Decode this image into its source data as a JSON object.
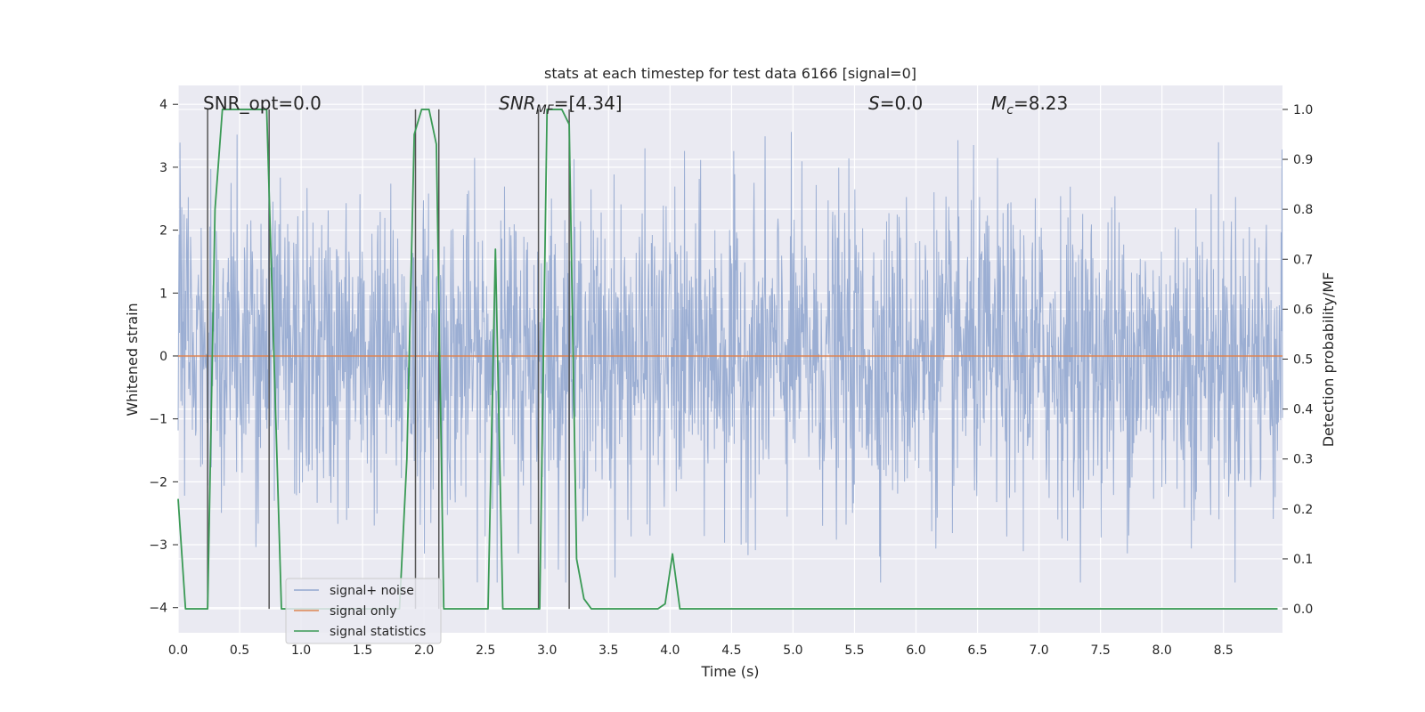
{
  "chart_data": {
    "type": "line",
    "title": "stats at each timestep for test data 6166 [signal=0]",
    "xlabel": "Time (s)",
    "ylabel": "Whitened strain",
    "ylabel_right": "Detection probability/MF",
    "xlim": [
      0,
      8.98
    ],
    "ylim": [
      -4.4,
      4.3
    ],
    "ylim_right": [
      -0.048,
      1.048
    ],
    "grid": true,
    "x_ticks": [
      "0.0",
      "0.5",
      "1.0",
      "1.5",
      "2.0",
      "2.5",
      "3.0",
      "3.5",
      "4.0",
      "4.5",
      "5.0",
      "5.5",
      "6.0",
      "6.5",
      "7.0",
      "7.5",
      "8.0",
      "8.5"
    ],
    "y_ticks": [
      "4",
      "3",
      "2",
      "1",
      "0",
      "−1",
      "−2",
      "−3",
      "−4"
    ],
    "y_ticks_right": [
      "1.0",
      "0.9",
      "0.8",
      "0.7",
      "0.6",
      "0.5",
      "0.4",
      "0.3",
      "0.2",
      "0.1",
      "0.0"
    ],
    "annotations": {
      "snr_opt": "SNR_opt=0.0",
      "snr_mf_sym": "SNR",
      "snr_mf_sub": "MF",
      "snr_mf_val": "=[4.34]",
      "s_sym": "S",
      "s_val": "=0.0",
      "mc_sym": "M",
      "mc_sub": "c",
      "mc_val": "=8.23"
    },
    "legend": {
      "position": "lower left",
      "entries": [
        "signal+ noise",
        "signal only",
        "signal statistics"
      ]
    },
    "colors": {
      "noise": "#92a7cf",
      "signal": "#dd8452",
      "stats": "#3a9a55",
      "vline": "#555555",
      "plot_bg": "#eaeaf2",
      "grid": "#ffffff"
    },
    "vertical_markers": [
      0.24,
      0.74,
      1.93,
      2.12,
      2.93,
      3.18
    ],
    "series": [
      {
        "name": "signal+ noise",
        "description": "whitened strain noise, approx. Gaussian, range -3.6 to 3.9",
        "envelope_abs": 3.9
      },
      {
        "name": "signal only",
        "x": [
          0,
          8.98
        ],
        "y": [
          0,
          0
        ]
      },
      {
        "name": "signal statistics",
        "x": [
          0.0,
          0.06,
          0.12,
          0.18,
          0.24,
          0.3,
          0.36,
          0.42,
          0.48,
          0.54,
          0.6,
          0.66,
          0.72,
          0.78,
          0.84,
          1.8,
          1.86,
          1.92,
          1.98,
          2.04,
          2.1,
          2.16,
          2.22,
          2.46,
          2.52,
          2.58,
          2.64,
          2.7,
          2.76,
          2.82,
          2.88,
          2.94,
          3.0,
          3.06,
          3.12,
          3.18,
          3.24,
          3.3,
          3.36,
          3.42,
          3.9,
          3.96,
          4.02,
          4.08,
          4.14,
          8.94
        ],
        "y": [
          0.22,
          0.0,
          0.0,
          0.0,
          0.0,
          0.8,
          1.0,
          1.0,
          1.0,
          1.0,
          1.0,
          1.0,
          1.0,
          0.5,
          0.0,
          0.0,
          0.3,
          0.95,
          1.0,
          1.0,
          0.93,
          0.0,
          0.0,
          0.0,
          0.0,
          0.72,
          0.0,
          0.0,
          0.0,
          0.0,
          0.0,
          0.0,
          1.0,
          1.0,
          1.0,
          0.97,
          0.1,
          0.02,
          0.0,
          0.0,
          0.0,
          0.01,
          0.11,
          0.0,
          0.0,
          0.0
        ]
      }
    ]
  }
}
